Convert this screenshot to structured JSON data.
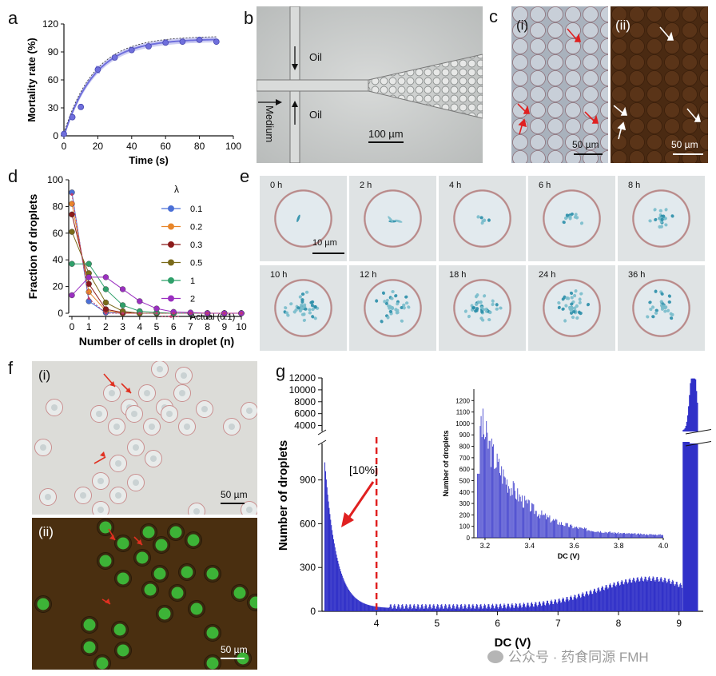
{
  "panels": {
    "a": {
      "label": "a"
    },
    "b": {
      "label": "b",
      "labels": [
        "Oil",
        "Oil",
        "Medium"
      ],
      "scale": "100 µm"
    },
    "c": {
      "label": "c",
      "sub_i": "(i)",
      "sub_ii": "(ii)",
      "scale_i": "50 µm",
      "scale_ii": "50 µm"
    },
    "d": {
      "label": "d"
    },
    "e": {
      "label": "e",
      "scale": "10 µm",
      "times": [
        "0 h",
        "2 h",
        "4 h",
        "6 h",
        "8 h",
        "10 h",
        "12 h",
        "18 h",
        "24 h",
        "36 h"
      ]
    },
    "f": {
      "label": "f",
      "sub_i": "(i)",
      "sub_ii": "(ii)",
      "scale_i": "50 µm",
      "scale_ii": "50 µm"
    },
    "g": {
      "label": "g"
    }
  },
  "watermark": "公众号 · 药食同源 FMH",
  "chart_data": [
    {
      "id": "a",
      "type": "scatter",
      "xlabel": "Time (s)",
      "ylabel": "Mortality rate (%)",
      "xlim": [
        0,
        100
      ],
      "ylim": [
        0,
        120
      ],
      "xticks": [
        0,
        20,
        40,
        60,
        80,
        100
      ],
      "yticks": [
        0,
        30,
        60,
        90,
        120
      ],
      "series": [
        {
          "x": [
            0,
            5,
            10,
            20,
            30,
            40,
            50,
            60,
            70,
            80,
            90
          ],
          "y": [
            2,
            20,
            31,
            71,
            84,
            92,
            96,
            100,
            101,
            103,
            101
          ],
          "err": [
            2,
            3,
            3,
            4,
            3,
            3,
            3,
            2,
            2,
            2,
            2
          ]
        }
      ],
      "fit": {
        "type": "exponential",
        "plateau": 104,
        "tau": 18
      },
      "color": "#6f6fdc"
    },
    {
      "id": "d",
      "type": "line",
      "xlabel": "Number of cells in droplet (n)",
      "ylabel": "Fraction of droplets",
      "xlim": [
        0,
        10
      ],
      "ylim": [
        0,
        100
      ],
      "xticks": [
        0,
        1,
        2,
        3,
        4,
        5,
        6,
        7,
        8,
        9,
        10
      ],
      "yticks": [
        0,
        20,
        40,
        60,
        80,
        100
      ],
      "legend_title": "λ",
      "legend_position": "right",
      "categories": [
        0,
        1,
        2,
        3,
        4,
        5,
        6,
        7,
        8,
        9,
        10
      ],
      "series": [
        {
          "name": "0.1",
          "color": "#4a6fd6",
          "values": [
            90.5,
            9,
            0.5,
            0,
            0,
            0,
            0,
            0,
            0,
            0,
            0
          ]
        },
        {
          "name": "0.2",
          "color": "#e8862a",
          "values": [
            82,
            16,
            2,
            0,
            0,
            0,
            0,
            0,
            0,
            0,
            0
          ]
        },
        {
          "name": "0.3",
          "color": "#8b1a1a",
          "values": [
            74,
            22,
            3,
            0.5,
            0,
            0,
            0,
            0,
            0,
            0,
            0
          ]
        },
        {
          "name": "0.5",
          "color": "#7a6a1a",
          "values": [
            61,
            30,
            8,
            1.5,
            0,
            0,
            0,
            0,
            0,
            0,
            0
          ]
        },
        {
          "name": "1",
          "color": "#2fa06a",
          "values": [
            37,
            37,
            18,
            6,
            1.5,
            0.5,
            0,
            0,
            0,
            0,
            0
          ]
        },
        {
          "name": "2",
          "color": "#9a2fc0",
          "values": [
            13.5,
            27,
            27,
            18,
            9,
            3.5,
            1,
            0.5,
            0,
            0,
            0
          ]
        },
        {
          "name": "Actual (0.1)",
          "color": "#c03a6a",
          "dashed": true,
          "values": [
            89,
            11,
            0,
            0,
            0,
            0,
            0,
            0,
            0,
            0,
            0
          ]
        }
      ]
    },
    {
      "id": "g",
      "type": "bar",
      "xlabel": "DC (V)",
      "ylabel": "Number of droplets",
      "xlim": [
        3.1,
        9.4
      ],
      "xticks": [
        4,
        5,
        6,
        7,
        8,
        9
      ],
      "yticks_lower": [
        0,
        300,
        600,
        900
      ],
      "yticks_upper": [
        4000,
        6000,
        8000,
        10000,
        12000
      ],
      "axis_break": true,
      "annotation": "[10%]",
      "threshold": 4,
      "color": "#3030c8",
      "inset": {
        "xlabel": "DC (V)",
        "ylabel": "Number of droplets",
        "xlim": [
          3.15,
          4.0
        ],
        "ylim": [
          0,
          1300
        ],
        "xticks": [
          3.2,
          3.4,
          3.6,
          3.8,
          4.0
        ],
        "yticks": [
          0,
          100,
          200,
          300,
          400,
          500,
          600,
          700,
          800,
          900,
          1000,
          1100,
          1200
        ]
      }
    }
  ]
}
